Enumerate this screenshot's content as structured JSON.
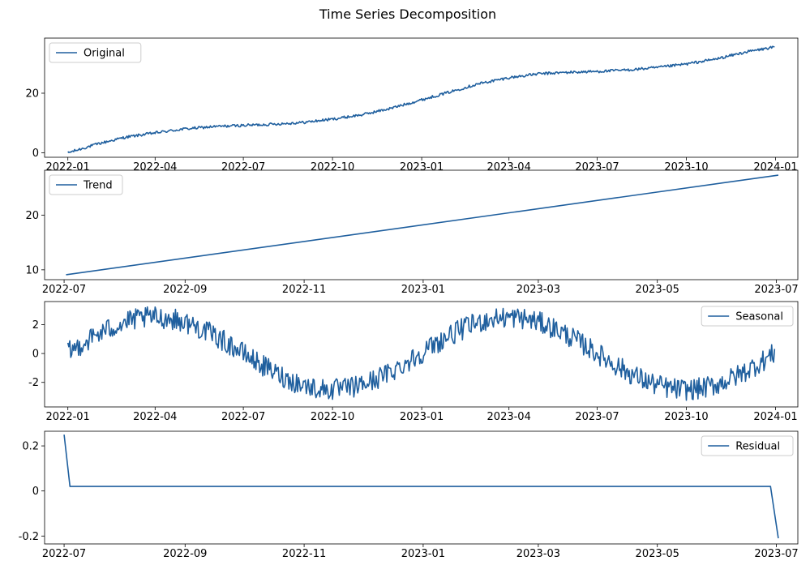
{
  "figure": {
    "title": "Time Series Decomposition",
    "line_color": "#1f5f9e"
  },
  "chart_data": [
    {
      "type": "line",
      "series": [
        {
          "name": "Original"
        }
      ],
      "legend": "upper-left",
      "x_kind": "date",
      "xlim": [
        "2021-12-08",
        "2024-01-24"
      ],
      "ylim": [
        -1.5,
        38.5
      ],
      "xticks": [
        "2022-01",
        "2022-04",
        "2022-07",
        "2022-10",
        "2023-01",
        "2023-04",
        "2023-07",
        "2023-10",
        "2024-01"
      ],
      "yticks": [
        0,
        20
      ],
      "trend_points": [
        [
          "2022-01-01",
          0.0
        ],
        [
          "2022-02-01",
          3.0
        ],
        [
          "2022-03-01",
          5.2
        ],
        [
          "2022-04-01",
          6.7
        ],
        [
          "2022-05-01",
          8.0
        ],
        [
          "2022-06-01",
          8.8
        ],
        [
          "2022-07-01",
          9.2
        ],
        [
          "2022-08-01",
          9.6
        ],
        [
          "2022-09-01",
          10.2
        ],
        [
          "2022-10-01",
          11.3
        ],
        [
          "2022-11-01",
          12.8
        ],
        [
          "2022-12-01",
          15.0
        ],
        [
          "2023-01-01",
          17.8
        ],
        [
          "2023-02-01",
          20.6
        ],
        [
          "2023-03-01",
          23.2
        ],
        [
          "2023-04-01",
          25.2
        ],
        [
          "2023-05-01",
          26.5
        ],
        [
          "2023-06-01",
          27.0
        ],
        [
          "2023-07-01",
          27.3
        ],
        [
          "2023-08-01",
          27.8
        ],
        [
          "2023-09-01",
          28.6
        ],
        [
          "2023-10-01",
          29.8
        ],
        [
          "2023-11-01",
          31.5
        ],
        [
          "2023-12-01",
          33.8
        ],
        [
          "2023-12-31",
          35.5
        ]
      ],
      "noise_amplitude": 0.45
    },
    {
      "type": "line",
      "series": [
        {
          "name": "Trend"
        }
      ],
      "legend": "upper-left",
      "x_kind": "date",
      "xlim": [
        "2022-06-21",
        "2023-07-12"
      ],
      "ylim": [
        8.2,
        28.2
      ],
      "xticks": [
        "2022-07",
        "2022-09",
        "2022-11",
        "2023-01",
        "2023-03",
        "2023-05",
        "2023-07"
      ],
      "yticks": [
        10,
        20
      ],
      "points": [
        [
          "2022-07-02",
          9.1
        ],
        [
          "2023-07-02",
          27.3
        ]
      ]
    },
    {
      "type": "line",
      "series": [
        {
          "name": "Seasonal"
        }
      ],
      "legend": "upper-right",
      "x_kind": "date",
      "xlim": [
        "2021-12-08",
        "2024-01-24"
      ],
      "ylim": [
        -3.7,
        3.6
      ],
      "xticks": [
        "2022-01",
        "2022-04",
        "2022-07",
        "2022-10",
        "2023-01",
        "2023-04",
        "2023-07",
        "2023-10",
        "2024-01"
      ],
      "yticks": [
        -2,
        0,
        2
      ],
      "start": "2022-01-01",
      "end": "2023-12-31",
      "amplitude": 2.5,
      "period_days": 365,
      "peak_date": "2022-04-01",
      "noise_amplitude": 0.75
    },
    {
      "type": "line",
      "series": [
        {
          "name": "Residual"
        }
      ],
      "legend": "upper-right",
      "x_kind": "date",
      "xlim": [
        "2022-06-21",
        "2023-07-12"
      ],
      "ylim": [
        -0.235,
        0.265
      ],
      "xticks": [
        "2022-07",
        "2022-09",
        "2022-11",
        "2023-01",
        "2023-03",
        "2023-05",
        "2023-07"
      ],
      "yticks": [
        -0.2,
        0.0,
        0.2
      ],
      "points": [
        [
          "2022-07-01",
          0.25
        ],
        [
          "2022-07-04",
          0.02
        ],
        [
          "2023-06-28",
          0.02
        ],
        [
          "2023-07-02",
          -0.21
        ]
      ]
    }
  ]
}
